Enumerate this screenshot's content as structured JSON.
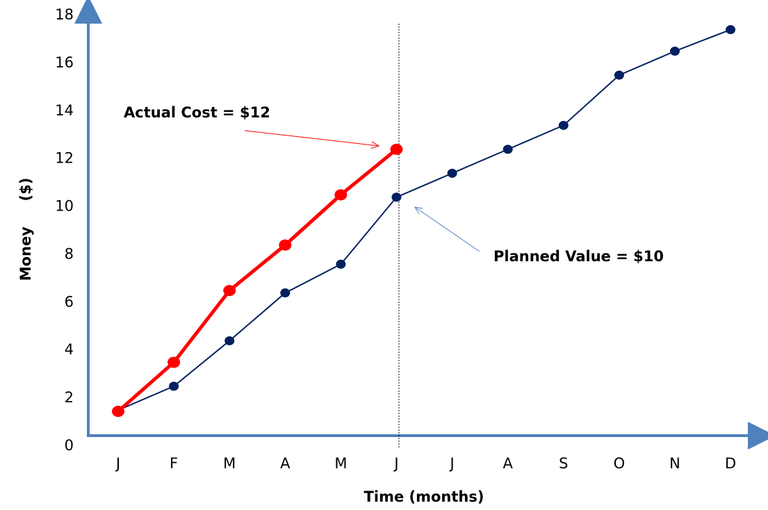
{
  "chart_data": {
    "type": "line",
    "y_label": "Money     ($)",
    "x_label": "Time (months)",
    "categories": [
      "J",
      "F",
      "M",
      "A",
      "M",
      "J",
      "J",
      "A",
      "S",
      "O",
      "N",
      "D"
    ],
    "series": [
      {
        "name": "Planned Value",
        "color": "#002060",
        "values": [
          1.5,
          2.5,
          4.4,
          6.4,
          7.6,
          10.4,
          11.4,
          12.4,
          13.4,
          15.5,
          16.5,
          17.4
        ]
      },
      {
        "name": "Actual Cost",
        "color": "#ff0000",
        "values": [
          1.45,
          3.5,
          6.5,
          8.4,
          10.5,
          12.4,
          null,
          null,
          null,
          null,
          null,
          null
        ]
      }
    ],
    "annotations": [
      "Actual Cost = $12",
      "Planned Value = $10"
    ],
    "ylim": [
      0,
      18
    ],
    "yticks": [
      0,
      2,
      4,
      6,
      8,
      10,
      12,
      14,
      16,
      18
    ]
  }
}
